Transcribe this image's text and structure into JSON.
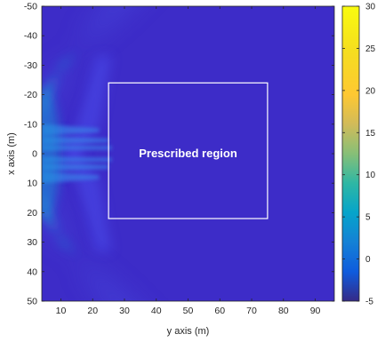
{
  "chart_data": {
    "type": "heatmap",
    "title": "",
    "xlabel": "y axis (m)",
    "ylabel": "x axis (m)",
    "xlim": [
      4,
      96
    ],
    "ylim": [
      -50,
      50
    ],
    "y_reversed": true,
    "x_ticks": [
      10,
      20,
      30,
      40,
      50,
      60,
      70,
      80,
      90
    ],
    "y_ticks": [
      -50,
      -40,
      -30,
      -20,
      -10,
      0,
      10,
      20,
      30,
      40,
      50
    ],
    "colorbar": {
      "colormap": "parula",
      "range": [
        -5,
        30
      ],
      "ticks": [
        -5,
        0,
        5,
        10,
        15,
        20,
        25,
        30
      ]
    },
    "background_value": -2,
    "prescribed_region": {
      "label": "Prescribed region",
      "y_range": [
        25,
        75
      ],
      "x_range": [
        -24,
        22
      ],
      "outline_color": "#ffffff"
    },
    "source": {
      "description_hidden": true,
      "near_field_y": 4,
      "center_x": 0,
      "side_lobes": [
        {
          "x_at_source": -12,
          "direction": "upper",
          "peak_value": 12
        },
        {
          "x_at_source": 12,
          "direction": "lower",
          "peak_value": 14
        }
      ],
      "fingers": [
        {
          "x_start": -10,
          "x_end": -6,
          "length_y": 18
        },
        {
          "x_start": -6,
          "x_end": -3,
          "length_y": 21
        },
        {
          "x_start": -3,
          "x_end": -1,
          "length_y": 22
        },
        {
          "x_start": 1,
          "x_end": 3,
          "length_y": 22
        },
        {
          "x_start": 3,
          "x_end": 6,
          "length_y": 21
        },
        {
          "x_start": 6,
          "x_end": 10,
          "length_y": 18
        }
      ]
    }
  }
}
